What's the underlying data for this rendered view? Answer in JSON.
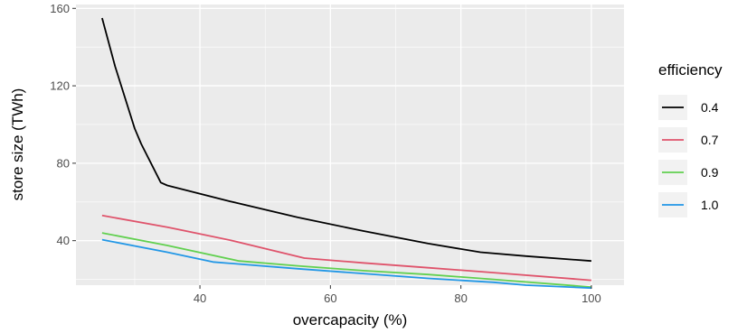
{
  "chart_data": {
    "type": "line",
    "title": "",
    "xlabel": "overcapacity (%)",
    "ylabel": "store size (TWh)",
    "xlim": [
      21,
      105
    ],
    "ylim": [
      17,
      162
    ],
    "x_ticks": [
      40,
      60,
      80,
      100
    ],
    "y_ticks": [
      40,
      80,
      120,
      160
    ],
    "grid": true,
    "legend": {
      "title": "efficiency",
      "position": "right"
    },
    "series": [
      {
        "name": "0.4",
        "color": "#000000",
        "points": [
          [
            25,
            155
          ],
          [
            27,
            130
          ],
          [
            30,
            98
          ],
          [
            31,
            90
          ],
          [
            34,
            70
          ],
          [
            35,
            68.5
          ],
          [
            45,
            60
          ],
          [
            55,
            52
          ],
          [
            65,
            45
          ],
          [
            75,
            38.5
          ],
          [
            83,
            34
          ],
          [
            90,
            32
          ],
          [
            100,
            29.5
          ]
        ]
      },
      {
        "name": "0.7",
        "color": "#DF536B",
        "points": [
          [
            25,
            53
          ],
          [
            35,
            47
          ],
          [
            45,
            40
          ],
          [
            56,
            31
          ],
          [
            65,
            28.5
          ],
          [
            75,
            26
          ],
          [
            85,
            23.5
          ],
          [
            100,
            19.5
          ]
        ]
      },
      {
        "name": "0.9",
        "color": "#61D04F",
        "points": [
          [
            25,
            44
          ],
          [
            35,
            37.5
          ],
          [
            46,
            29.5
          ],
          [
            55,
            27
          ],
          [
            65,
            24.5
          ],
          [
            75,
            22.5
          ],
          [
            85,
            20
          ],
          [
            100,
            16
          ]
        ]
      },
      {
        "name": "1.0",
        "color": "#2297E6",
        "points": [
          [
            25,
            40.5
          ],
          [
            35,
            34
          ],
          [
            42,
            29
          ],
          [
            55,
            25.5
          ],
          [
            65,
            23
          ],
          [
            75,
            20.5
          ],
          [
            85,
            18.5
          ],
          [
            90,
            17
          ],
          [
            100,
            15.5
          ]
        ]
      }
    ]
  }
}
